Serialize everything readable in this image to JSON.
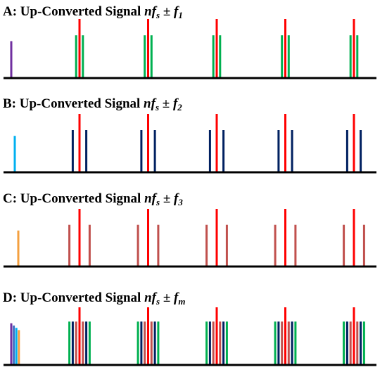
{
  "colors": {
    "carrier": "#ff0000",
    "axis": "#000000",
    "f1_baseband": "#7030a0",
    "f1_sideband": "#00b050",
    "f2_baseband": "#00b0f0",
    "f2_sideband": "#002060",
    "f3_baseband": "#f4a040",
    "f3_sideband": "#c0504d",
    "fm_baseband": [
      "#7030a0",
      "#4472c4",
      "#00b0f0",
      "#f4a040"
    ],
    "fm_sideband": [
      "#c0504d",
      "#002060",
      "#00b050"
    ]
  },
  "panels": [
    {
      "id": "A",
      "title": {
        "prefix": "A: Up-Converted Signal ",
        "n": "n",
        "f": "f",
        "s": "s",
        "pm": " ± ",
        "f2": "f",
        "sub": "1"
      },
      "harmonics": [
        1,
        2,
        3,
        4,
        5
      ],
      "sideband_offsets": [
        1
      ],
      "baseband_levels": [
        0.62
      ],
      "carrier_level": 1.0,
      "sideband_level": 0.72
    },
    {
      "id": "B",
      "title": {
        "prefix": "B: Up-Converted Signal ",
        "n": "n",
        "f": "f",
        "s": "s",
        "pm": " ± ",
        "f2": "f",
        "sub": "2"
      },
      "harmonics": [
        1,
        2,
        3,
        4,
        5
      ],
      "sideband_offsets": [
        2
      ],
      "baseband_levels": [
        0.62
      ],
      "carrier_level": 1.0,
      "sideband_level": 0.72
    },
    {
      "id": "C",
      "title": {
        "prefix": "C: Up-Converted Signal ",
        "n": "n",
        "f": "f",
        "s": "s",
        "pm": " ± ",
        "f2": "f",
        "sub": "3"
      },
      "harmonics": [
        1,
        2,
        3,
        4,
        5
      ],
      "sideband_offsets": [
        3
      ],
      "baseband_levels": [
        0.62
      ],
      "carrier_level": 1.0,
      "sideband_level": 0.72
    },
    {
      "id": "D",
      "title": {
        "prefix": "D: Up-Converted Signal ",
        "n": "n",
        "f": "f",
        "s": "s",
        "pm": " ± ",
        "f2": "f",
        "sub": "m"
      },
      "harmonics": [
        1,
        2,
        3,
        4,
        5
      ],
      "sideband_offsets": [
        1,
        2,
        3
      ],
      "baseband_levels": [
        0.72,
        0.68,
        0.64,
        0.6
      ],
      "carrier_level": 1.0,
      "sideband_level": 0.75
    }
  ]
}
